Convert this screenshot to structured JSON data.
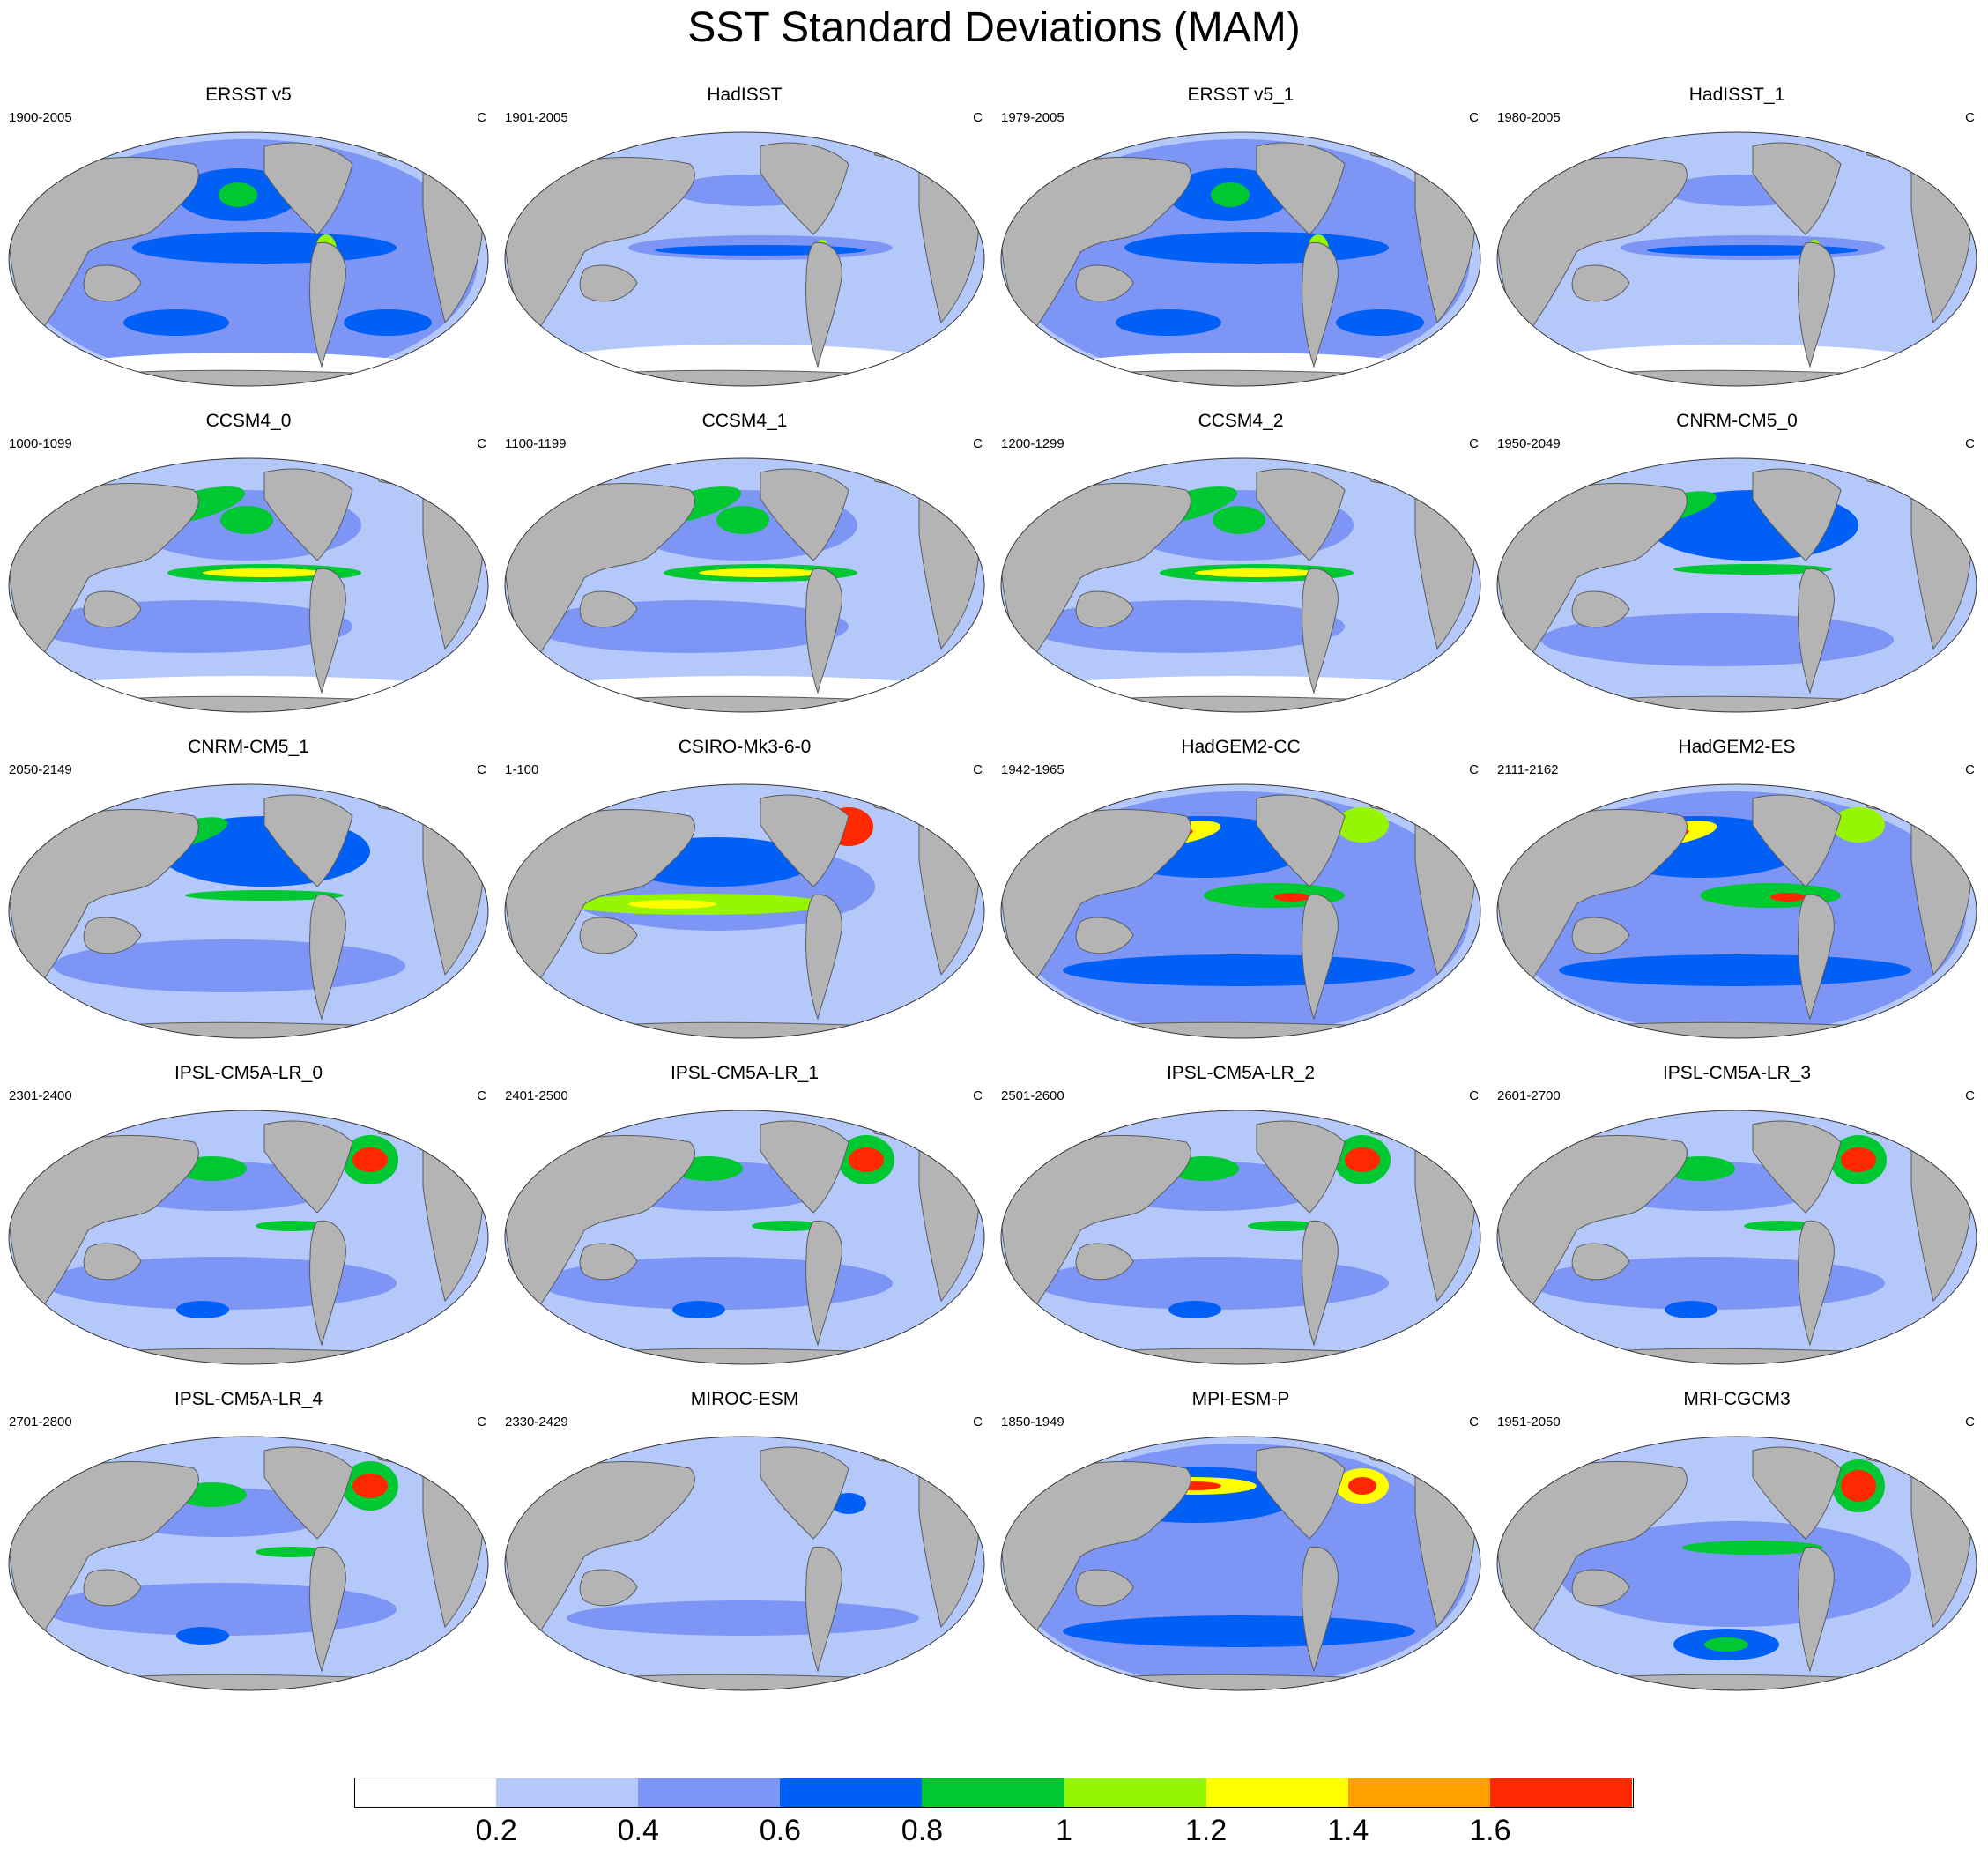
{
  "title": "SST Standard Deviations (MAM)",
  "units": "C",
  "panels": [
    {
      "title": "ERSST v5",
      "years": "1900-2005",
      "pattern": "obs"
    },
    {
      "title": "HadISST",
      "years": "1901-2005",
      "pattern": "obs_low"
    },
    {
      "title": "ERSST v5_1",
      "years": "1979-2005",
      "pattern": "obs"
    },
    {
      "title": "HadISST_1",
      "years": "1980-2005",
      "pattern": "obs_low"
    },
    {
      "title": "CCSM4_0",
      "years": "1000-1099",
      "pattern": "ccsm"
    },
    {
      "title": "CCSM4_1",
      "years": "1100-1199",
      "pattern": "ccsm"
    },
    {
      "title": "CCSM4_2",
      "years": "1200-1299",
      "pattern": "ccsm"
    },
    {
      "title": "CNRM-CM5_0",
      "years": "1950-2049",
      "pattern": "cnrm"
    },
    {
      "title": "CNRM-CM5_1",
      "years": "2050-2149",
      "pattern": "cnrm"
    },
    {
      "title": "CSIRO-Mk3-6-0",
      "years": "1-100",
      "pattern": "csiro"
    },
    {
      "title": "HadGEM2-CC",
      "years": "1942-1965",
      "pattern": "hadgem"
    },
    {
      "title": "HadGEM2-ES",
      "years": "2111-2162",
      "pattern": "hadgem"
    },
    {
      "title": "IPSL-CM5A-LR_0",
      "years": "2301-2400",
      "pattern": "ipsl"
    },
    {
      "title": "IPSL-CM5A-LR_1",
      "years": "2401-2500",
      "pattern": "ipsl"
    },
    {
      "title": "IPSL-CM5A-LR_2",
      "years": "2501-2600",
      "pattern": "ipsl"
    },
    {
      "title": "IPSL-CM5A-LR_3",
      "years": "2601-2700",
      "pattern": "ipsl"
    },
    {
      "title": "IPSL-CM5A-LR_4",
      "years": "2701-2800",
      "pattern": "ipsl"
    },
    {
      "title": "MIROC-ESM",
      "years": "2330-2429",
      "pattern": "miroc"
    },
    {
      "title": "MPI-ESM-P",
      "years": "1850-1949",
      "pattern": "mpi"
    },
    {
      "title": "MRI-CGCM3",
      "years": "1951-2050",
      "pattern": "mri"
    }
  ],
  "colorbar": {
    "labels": [
      "0.2",
      "0.4",
      "0.6",
      "0.8",
      "1",
      "1.2",
      "1.4",
      "1.6"
    ],
    "colors": [
      "#ffffff",
      "#b4c8fa",
      "#7d96f5",
      "#005ff5",
      "#00c832",
      "#96f500",
      "#ffff00",
      "#ffa000",
      "#ff2800"
    ]
  }
}
